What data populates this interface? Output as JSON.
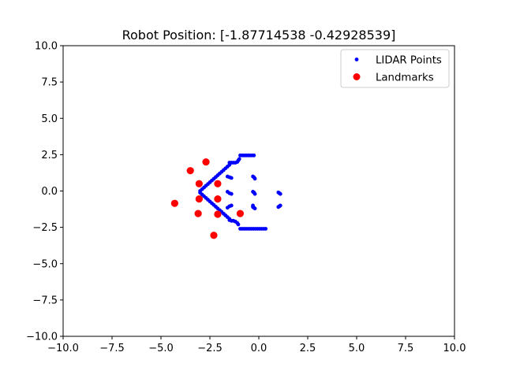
{
  "chart_data": {
    "type": "scatter",
    "title": "Robot Position: [-1.87714538 -0.42928539]",
    "xlabel": "",
    "ylabel": "",
    "xlim": [
      -10,
      10
    ],
    "ylim": [
      -10,
      10
    ],
    "xticks": [
      -10,
      -7.5,
      -5,
      -2.5,
      0,
      2.5,
      5,
      7.5,
      10
    ],
    "yticks": [
      -10,
      -7.5,
      -5,
      -2.5,
      0,
      2.5,
      5,
      7.5,
      10
    ],
    "xtick_labels": [
      "−10.0",
      "−7.5",
      "−5.0",
      "−2.5",
      "0.0",
      "2.5",
      "5.0",
      "7.5",
      "10.0"
    ],
    "ytick_labels": [
      "−10.0",
      "−7.5",
      "−5.0",
      "−2.5",
      "0.0",
      "2.5",
      "5.0",
      "7.5",
      "10.0"
    ],
    "grid": false,
    "legend_position": "top-right",
    "series": [
      {
        "name": "LIDAR Points",
        "color": "#0000ff",
        "marker": "small-dot",
        "points": [
          [
            -3.0,
            0.0
          ],
          [
            -2.9,
            0.12
          ],
          [
            -2.8,
            0.24
          ],
          [
            -2.7,
            0.36
          ],
          [
            -2.6,
            0.48
          ],
          [
            -2.5,
            0.6
          ],
          [
            -2.4,
            0.72
          ],
          [
            -2.3,
            0.84
          ],
          [
            -2.2,
            0.96
          ],
          [
            -2.1,
            1.08
          ],
          [
            -2.0,
            1.2
          ],
          [
            -1.9,
            1.32
          ],
          [
            -1.8,
            1.44
          ],
          [
            -1.7,
            1.56
          ],
          [
            -1.6,
            1.68
          ],
          [
            -1.5,
            1.8
          ],
          [
            -1.5,
            1.95
          ],
          [
            -1.4,
            1.95
          ],
          [
            -1.3,
            1.95
          ],
          [
            -1.2,
            1.95
          ],
          [
            -1.1,
            2.0
          ],
          [
            -1.05,
            2.1
          ],
          [
            -1.0,
            2.2
          ],
          [
            -0.95,
            2.45
          ],
          [
            -0.85,
            2.45
          ],
          [
            -0.75,
            2.45
          ],
          [
            -0.65,
            2.45
          ],
          [
            -0.55,
            2.45
          ],
          [
            -0.45,
            2.45
          ],
          [
            -0.35,
            2.45
          ],
          [
            -0.25,
            2.45
          ],
          [
            -3.0,
            -0.12
          ],
          [
            -2.9,
            -0.24
          ],
          [
            -2.8,
            -0.36
          ],
          [
            -2.7,
            -0.48
          ],
          [
            -2.6,
            -0.6
          ],
          [
            -2.5,
            -0.72
          ],
          [
            -2.4,
            -0.84
          ],
          [
            -2.3,
            -0.96
          ],
          [
            -2.2,
            -1.08
          ],
          [
            -2.1,
            -1.2
          ],
          [
            -2.0,
            -1.32
          ],
          [
            -1.9,
            -1.44
          ],
          [
            -1.8,
            -1.56
          ],
          [
            -1.7,
            -1.68
          ],
          [
            -1.6,
            -1.8
          ],
          [
            -1.5,
            -1.92
          ],
          [
            -1.5,
            -2.0
          ],
          [
            -1.4,
            -2.05
          ],
          [
            -1.3,
            -2.05
          ],
          [
            -1.2,
            -2.1
          ],
          [
            -1.1,
            -2.2
          ],
          [
            -1.05,
            -2.3
          ],
          [
            -0.95,
            -2.6
          ],
          [
            -0.85,
            -2.6
          ],
          [
            -0.75,
            -2.6
          ],
          [
            -0.65,
            -2.6
          ],
          [
            -0.55,
            -2.6
          ],
          [
            -0.45,
            -2.6
          ],
          [
            -0.35,
            -2.6
          ],
          [
            -0.25,
            -2.6
          ],
          [
            -0.15,
            -2.6
          ],
          [
            -0.05,
            -2.6
          ],
          [
            0.05,
            -2.6
          ],
          [
            0.15,
            -2.6
          ],
          [
            0.25,
            -2.6
          ],
          [
            0.35,
            -2.6
          ],
          [
            -1.6,
            1.0
          ],
          [
            -1.5,
            0.95
          ],
          [
            -1.4,
            0.9
          ],
          [
            -1.6,
            -0.05
          ],
          [
            -1.5,
            -0.15
          ],
          [
            -1.4,
            -0.2
          ],
          [
            -1.6,
            -1.15
          ],
          [
            -1.5,
            -1.05
          ],
          [
            -1.4,
            -1.0
          ],
          [
            -0.3,
            1.0
          ],
          [
            -0.25,
            0.95
          ],
          [
            -0.2,
            0.85
          ],
          [
            -0.3,
            -0.05
          ],
          [
            -0.25,
            -0.1
          ],
          [
            -0.2,
            -0.2
          ],
          [
            -0.3,
            -1.1
          ],
          [
            -0.25,
            -1.15
          ],
          [
            -0.2,
            -1.2
          ],
          [
            -0.3,
            -1.0
          ],
          [
            1.0,
            -0.1
          ],
          [
            1.05,
            -0.15
          ],
          [
            1.1,
            -0.2
          ],
          [
            1.0,
            -1.1
          ],
          [
            1.05,
            -1.05
          ],
          [
            1.1,
            -1.0
          ]
        ]
      },
      {
        "name": "Landmarks",
        "color": "#ff0000",
        "marker": "dot",
        "points": [
          [
            -3.5,
            1.4
          ],
          [
            -2.7,
            2.0
          ],
          [
            -3.05,
            0.5
          ],
          [
            -2.1,
            0.5
          ],
          [
            -4.3,
            -0.85
          ],
          [
            -3.05,
            -0.55
          ],
          [
            -2.1,
            -0.55
          ],
          [
            -3.1,
            -1.55
          ],
          [
            -2.1,
            -1.6
          ],
          [
            -0.95,
            -1.55
          ],
          [
            -2.3,
            -3.05
          ]
        ]
      }
    ]
  }
}
